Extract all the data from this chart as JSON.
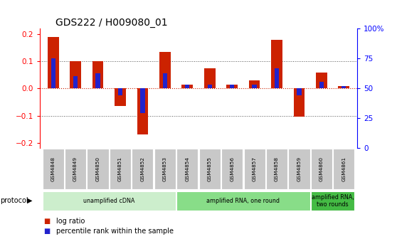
{
  "title": "GDS222 / H009080_01",
  "samples": [
    "GSM4848",
    "GSM4849",
    "GSM4850",
    "GSM4851",
    "GSM4852",
    "GSM4853",
    "GSM4854",
    "GSM4855",
    "GSM4856",
    "GSM4857",
    "GSM4858",
    "GSM4859",
    "GSM4860",
    "GSM4861"
  ],
  "log_ratio": [
    0.19,
    0.1,
    0.1,
    -0.065,
    -0.17,
    0.135,
    0.015,
    0.075,
    0.013,
    0.03,
    0.18,
    -0.105,
    0.058,
    0.01
  ],
  "percentile": [
    0.11,
    0.045,
    0.055,
    -0.025,
    -0.09,
    0.055,
    0.013,
    0.013,
    0.013,
    0.013,
    0.075,
    -0.025,
    0.025,
    0.01
  ],
  "ylim": [
    -0.22,
    0.22
  ],
  "yticks": [
    -0.2,
    -0.1,
    0.0,
    0.1,
    0.2
  ],
  "y2ticks": [
    0,
    25,
    50,
    75,
    100
  ],
  "bar_color": "#cc2200",
  "pct_color": "#2222cc",
  "zero_line_color": "#cc2200",
  "dot_line_color": "#555555",
  "protocol_groups": [
    {
      "label": "unamplified cDNA",
      "start": 0,
      "end": 5,
      "color": "#cceecc"
    },
    {
      "label": "amplified RNA, one round",
      "start": 6,
      "end": 11,
      "color": "#88dd88"
    },
    {
      "label": "amplified RNA,\ntwo rounds",
      "start": 12,
      "end": 13,
      "color": "#44bb44"
    }
  ],
  "legend_items": [
    {
      "label": "log ratio",
      "color": "#cc2200"
    },
    {
      "label": "percentile rank within the sample",
      "color": "#2222cc"
    }
  ],
  "background_color": "#ffffff",
  "tick_bg_color": "#c8c8c8",
  "bar_width": 0.5
}
